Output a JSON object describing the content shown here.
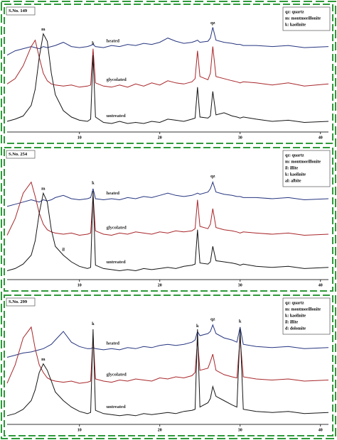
{
  "chart_data": [
    {
      "type": "line",
      "title": "S.No. 149",
      "notes": [
        "qz: quartz",
        "m: montmorillonite",
        "k: kaolinite"
      ],
      "x": [
        1,
        2,
        3,
        4,
        4.5,
        5,
        5.5,
        6,
        6.5,
        7,
        8,
        9,
        10,
        11,
        11.4,
        11.7,
        12,
        13,
        14,
        15,
        16,
        17,
        18,
        19,
        20,
        21,
        22,
        23,
        24,
        24.4,
        24.7,
        25,
        26,
        26.3,
        26.6,
        27,
        28,
        29,
        29.6,
        30,
        30.4,
        32,
        34,
        36,
        38,
        41
      ],
      "xlim": [
        1,
        41
      ],
      "ylim": [
        0,
        105
      ],
      "xticks": [
        10,
        20,
        30,
        40
      ],
      "series": [
        {
          "name": "heated",
          "color": "#26357f",
          "values": [
            72,
            76,
            78,
            80,
            79,
            78,
            80,
            79,
            80,
            81,
            84,
            80,
            79,
            80,
            81,
            82,
            80,
            79,
            81,
            80,
            82,
            81,
            83,
            82,
            84,
            88,
            85,
            83,
            84,
            85,
            86,
            84,
            85,
            88,
            98,
            86,
            84,
            83,
            82,
            82,
            81,
            81,
            80,
            81,
            79,
            80
          ]
        },
        {
          "name": "glycolated",
          "color": "#a8262a",
          "values": [
            45,
            50,
            62,
            80,
            86,
            70,
            55,
            48,
            45,
            44,
            43,
            44,
            42,
            43,
            44,
            78,
            46,
            43,
            42,
            44,
            42,
            45,
            43,
            46,
            44,
            48,
            46,
            45,
            47,
            50,
            76,
            52,
            49,
            55,
            80,
            52,
            50,
            48,
            47,
            46,
            47,
            46,
            44,
            46,
            43,
            45
          ]
        },
        {
          "name": "untreated",
          "color": "#151515",
          "values": [
            10,
            12,
            15,
            25,
            40,
            70,
            92,
            85,
            55,
            35,
            20,
            14,
            11,
            10,
            12,
            72,
            14,
            9,
            8,
            10,
            8,
            9,
            8,
            10,
            9,
            12,
            11,
            10,
            12,
            13,
            42,
            14,
            13,
            15,
            38,
            16,
            18,
            15,
            14,
            13,
            14,
            12,
            10,
            11,
            9,
            10
          ]
        }
      ],
      "annotations": [
        {
          "text": "m",
          "x": 5.5,
          "y": 96
        },
        {
          "text": "k",
          "x": 11.7,
          "y": 83
        },
        {
          "text": "qz",
          "x": 26.6,
          "y": 102
        }
      ]
    },
    {
      "type": "line",
      "title": "S.No. 254",
      "notes": [
        "qz: quartz",
        "m: montmorillonite",
        "il: illite",
        "k: kaolinite",
        "al: albite"
      ],
      "x": [
        1,
        2,
        3,
        4,
        4.5,
        5,
        5.5,
        6,
        6.5,
        7,
        8,
        9,
        10,
        11,
        11.4,
        11.7,
        12,
        13,
        14,
        15,
        16,
        17,
        18,
        19,
        20,
        21,
        22,
        23,
        24,
        24.4,
        24.7,
        25,
        26,
        26.3,
        26.6,
        27,
        28,
        29,
        29.6,
        30,
        30.4,
        32,
        34,
        36,
        38,
        41
      ],
      "xlim": [
        1,
        41
      ],
      "ylim": [
        0,
        105
      ],
      "xticks": [
        10,
        20,
        30,
        40
      ],
      "series": [
        {
          "name": "heated",
          "color": "#26357f",
          "values": [
            66,
            68,
            70,
            72,
            71,
            70,
            72,
            71,
            72,
            74,
            76,
            73,
            72,
            73,
            74,
            82,
            73,
            72,
            73,
            72,
            74,
            73,
            75,
            74,
            76,
            78,
            76,
            75,
            76,
            77,
            78,
            77,
            79,
            82,
            88,
            79,
            77,
            76,
            75,
            75,
            74,
            74,
            73,
            74,
            72,
            73
          ]
        },
        {
          "name": "glycolated",
          "color": "#a8262a",
          "values": [
            40,
            55,
            78,
            88,
            75,
            60,
            50,
            45,
            43,
            42,
            41,
            42,
            40,
            41,
            42,
            76,
            44,
            41,
            40,
            42,
            41,
            43,
            42,
            41,
            43,
            42,
            44,
            43,
            44,
            46,
            72,
            48,
            46,
            50,
            64,
            47,
            45,
            44,
            43,
            42,
            43,
            42,
            41,
            42,
            40,
            41
          ]
        },
        {
          "name": "untreated",
          "color": "#151515",
          "values": [
            8,
            10,
            14,
            22,
            35,
            60,
            78,
            70,
            45,
            30,
            22,
            16,
            12,
            10,
            11,
            80,
            13,
            10,
            9,
            8,
            9,
            8,
            10,
            9,
            10,
            11,
            10,
            12,
            13,
            14,
            45,
            15,
            14,
            16,
            30,
            17,
            16,
            15,
            14,
            13,
            14,
            12,
            11,
            12,
            10,
            11
          ]
        }
      ],
      "annotations": [
        {
          "text": "m",
          "x": 5.5,
          "y": 82
        },
        {
          "text": "k",
          "x": 11.7,
          "y": 87
        },
        {
          "text": "qz",
          "x": 26.6,
          "y": 93
        },
        {
          "text": "il",
          "x": 8,
          "y": 27
        }
      ]
    },
    {
      "type": "line",
      "title": "S.No. 299",
      "notes": [
        "qz: quartz",
        "m: montmorillonite",
        "k: kaolinite",
        "il: illite",
        "d: dolomite"
      ],
      "x": [
        1,
        2,
        3,
        4,
        4.5,
        5,
        5.5,
        6,
        6.5,
        7,
        8,
        9,
        10,
        11,
        11.4,
        11.7,
        12,
        13,
        14,
        15,
        16,
        17,
        18,
        19,
        20,
        21,
        22,
        23,
        24,
        24.4,
        24.7,
        25,
        26,
        26.3,
        26.6,
        27,
        28,
        29,
        29.6,
        30,
        30.4,
        32,
        34,
        36,
        38,
        41
      ],
      "xlim": [
        1,
        41
      ],
      "ylim": [
        0,
        105
      ],
      "xticks": [
        10,
        20,
        30,
        40
      ],
      "series": [
        {
          "name": "heated",
          "color": "#26357f",
          "values": [
            62,
            64,
            66,
            67,
            68,
            69,
            70,
            72,
            74,
            78,
            86,
            76,
            72,
            70,
            70,
            71,
            70,
            69,
            70,
            69,
            71,
            70,
            72,
            71,
            73,
            74,
            73,
            74,
            76,
            78,
            86,
            82,
            84,
            86,
            92,
            84,
            80,
            78,
            76,
            90,
            74,
            72,
            71,
            72,
            70,
            71
          ]
        },
        {
          "name": "glycolated",
          "color": "#a8262a",
          "values": [
            38,
            55,
            80,
            90,
            70,
            55,
            48,
            43,
            41,
            40,
            39,
            40,
            38,
            39,
            40,
            82,
            42,
            40,
            39,
            41,
            40,
            42,
            41,
            40,
            43,
            42,
            44,
            43,
            45,
            48,
            78,
            50,
            52,
            58,
            65,
            50,
            46,
            44,
            43,
            80,
            44,
            42,
            41,
            42,
            40,
            41
          ]
        },
        {
          "name": "untreated",
          "color": "#151515",
          "values": [
            8,
            10,
            14,
            22,
            32,
            48,
            56,
            50,
            40,
            30,
            22,
            16,
            12,
            10,
            11,
            88,
            13,
            10,
            9,
            8,
            9,
            8,
            10,
            9,
            10,
            11,
            10,
            12,
            13,
            14,
            88,
            16,
            20,
            24,
            35,
            26,
            22,
            18,
            16,
            88,
            14,
            12,
            11,
            12,
            10,
            11
          ]
        }
      ],
      "annotations": [
        {
          "text": "m",
          "x": 5.5,
          "y": 60
        },
        {
          "text": "k",
          "x": 11.7,
          "y": 93
        },
        {
          "text": "qz",
          "x": 26.6,
          "y": 97
        },
        {
          "text": "k",
          "x": 30,
          "y": 95
        },
        {
          "text": "k",
          "x": 24.7,
          "y": 91
        }
      ]
    }
  ]
}
